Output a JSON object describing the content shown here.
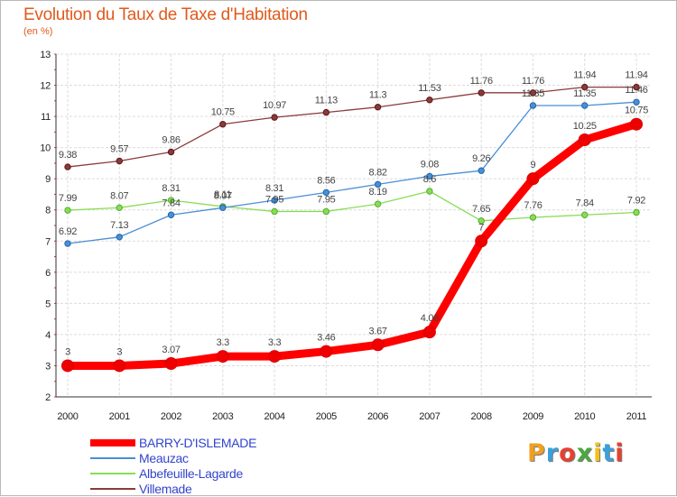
{
  "chart_data": {
    "type": "line",
    "title": "Evolution du Taux de Taxe d'Habitation",
    "unit_label": "(en %)",
    "x": [
      "2000",
      "2001",
      "2002",
      "2003",
      "2004",
      "2005",
      "2006",
      "2007",
      "2008",
      "2009",
      "2010",
      "2011"
    ],
    "ylim": [
      2,
      13
    ],
    "yticks": [
      "2",
      "3",
      "4",
      "5",
      "6",
      "7",
      "8",
      "9",
      "10",
      "11",
      "12",
      "13"
    ],
    "grid": true,
    "legend_position": "bottom-left",
    "series": [
      {
        "name": "BARRY-D'ISLEMADE",
        "color": "#ff0000",
        "values": [
          3,
          3,
          3.07,
          3.3,
          3.3,
          3.46,
          3.67,
          4.08,
          7,
          9,
          10.25,
          10.75
        ],
        "labels": [
          "3",
          "3",
          "3.07",
          "3.3",
          "3.3",
          "3.46",
          "3.67",
          "4.08",
          "7",
          "9",
          "10.25",
          "10.75"
        ]
      },
      {
        "name": "Meauzac",
        "color": "#4a8fd4",
        "values": [
          6.92,
          7.13,
          7.84,
          8.07,
          8.31,
          8.56,
          8.82,
          9.08,
          9.26,
          11.35,
          11.35,
          11.46
        ],
        "labels": [
          "6.92",
          "7.13",
          "7.84",
          "8.07",
          "8.31",
          "8.56",
          "8.82",
          "9.08",
          "9.26",
          "11.35",
          "11.35",
          "11.46"
        ]
      },
      {
        "name": "Albefeuille-Lagarde",
        "color": "#88dd55",
        "values": [
          7.99,
          8.07,
          8.31,
          8.11,
          7.95,
          7.95,
          8.19,
          8.6,
          7.65,
          7.76,
          7.84,
          7.92
        ],
        "labels": [
          "7.99",
          "8.07",
          "8.31",
          "8.11",
          "7.95",
          "7.95",
          "8.19",
          "8.6",
          "7.65",
          "7.76",
          "7.84",
          "7.92"
        ]
      },
      {
        "name": "Villemade",
        "color": "#8b3a3a",
        "values": [
          9.38,
          9.57,
          9.86,
          10.75,
          10.97,
          11.13,
          11.3,
          11.53,
          11.76,
          11.76,
          11.94,
          11.94
        ],
        "labels": [
          "9.38",
          "9.57",
          "9.86",
          "10.75",
          "10.97",
          "11.13",
          "11.3",
          "11.53",
          "11.76",
          "11.76",
          "11.94",
          "11.94"
        ]
      }
    ]
  },
  "logo": {
    "letters": [
      "P",
      "r",
      "o",
      "x",
      "i",
      "t",
      "i"
    ],
    "colors": [
      "#f0a020",
      "#3aa0dd",
      "#e84030",
      "#4aa840",
      "#f0c020",
      "#3aa0dd",
      "#e84030"
    ]
  }
}
